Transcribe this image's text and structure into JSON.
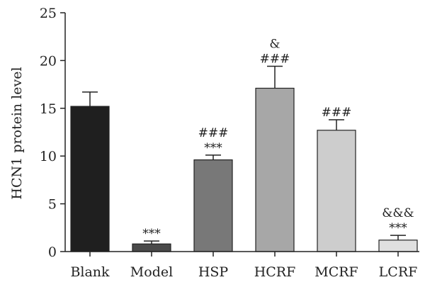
{
  "chart_data": {
    "type": "bar",
    "title": "",
    "xlabel": "",
    "ylabel": "HCN1 protein level",
    "ylim": [
      0,
      25
    ],
    "yticks": [
      0,
      5,
      10,
      15,
      20,
      25
    ],
    "categories": [
      "Blank",
      "Model",
      "HSP",
      "HCRF",
      "MCRF",
      "LCRF"
    ],
    "values": [
      15.2,
      0.8,
      9.6,
      17.1,
      12.7,
      1.2
    ],
    "errors": [
      1.5,
      0.3,
      0.5,
      2.3,
      1.1,
      0.5
    ],
    "bar_colors": [
      "#1f1f1f",
      "#4a4a4a",
      "#787878",
      "#a7a7a7",
      "#cdcdcd",
      "#e0e0e0"
    ],
    "annotations": [
      [],
      [
        "***"
      ],
      [
        "***",
        "###"
      ],
      [
        "###",
        "&"
      ],
      [
        "###"
      ],
      [
        "***",
        "&&&"
      ]
    ],
    "grid": false,
    "legend": "none"
  }
}
